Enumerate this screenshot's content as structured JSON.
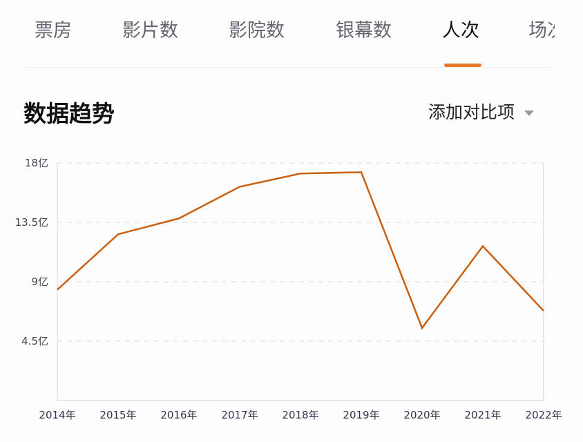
{
  "tabs": [
    {
      "label": "票房",
      "active": false
    },
    {
      "label": "影片数",
      "active": false
    },
    {
      "label": "影院数",
      "active": false
    },
    {
      "label": "银幕数",
      "active": false
    },
    {
      "label": "人次",
      "active": true
    },
    {
      "label": "场次",
      "active": false
    }
  ],
  "section": {
    "title": "数据趋势",
    "compare_label": "添加对比项",
    "compare_icon": "caret-down-icon"
  },
  "colors": {
    "accent": "#e8782a",
    "line": "#c8600f"
  },
  "chart_data": {
    "type": "line",
    "categories": [
      "2014年",
      "2015年",
      "2016年",
      "2017年",
      "2018年",
      "2019年",
      "2020年",
      "2021年",
      "2022年"
    ],
    "series": [
      {
        "values": [
          8.4,
          12.6,
          13.8,
          16.2,
          17.2,
          17.3,
          5.5,
          11.7,
          6.8
        ]
      }
    ],
    "yticks": [
      {
        "value": 4.5,
        "label": "4.5亿"
      },
      {
        "value": 9,
        "label": "9亿"
      },
      {
        "value": 13.5,
        "label": "13.5亿"
      },
      {
        "value": 18,
        "label": "18亿"
      }
    ],
    "ylim": [
      0,
      18
    ],
    "yunit": "亿",
    "grid": "horizontal-dashed",
    "legend": "none"
  }
}
